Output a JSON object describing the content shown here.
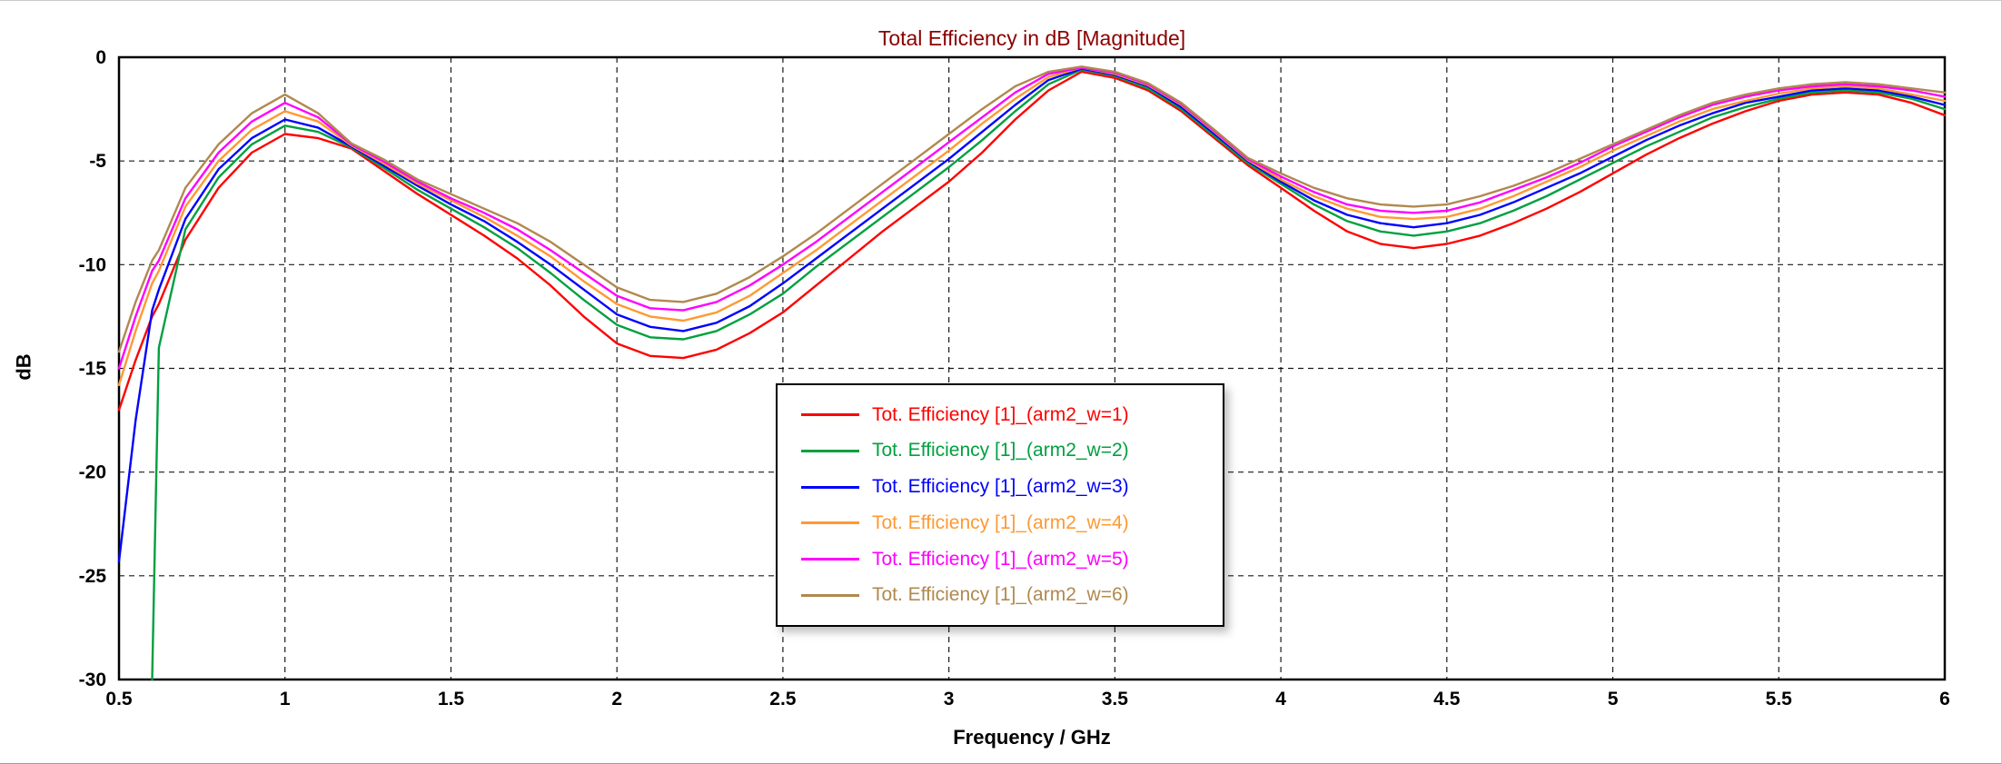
{
  "chart_data": {
    "type": "line",
    "title": "Total Efficiency in dB [Magnitude]",
    "title_color": "#8b0000",
    "xlabel": "Frequency / GHz",
    "ylabel": "dB",
    "xlim": [
      0.5,
      6
    ],
    "ylim": [
      -30,
      0
    ],
    "grid": "dashed",
    "legend_position": "center",
    "xticks": [
      0.5,
      1,
      1.5,
      2,
      2.5,
      3,
      3.5,
      4,
      4.5,
      5,
      5.5,
      6
    ],
    "xtick_labels": [
      "0.5",
      "1",
      "1.5",
      "2",
      "2.5",
      "3",
      "3.5",
      "4",
      "4.5",
      "5",
      "5.5",
      "6"
    ],
    "yticks": [
      0,
      -5,
      -10,
      -15,
      -20,
      -25,
      -30
    ],
    "ytick_labels": [
      "0",
      "-5",
      "-10",
      "-15",
      "-20",
      "-25",
      "-30"
    ],
    "x": [
      0.5,
      0.55,
      0.6,
      0.62,
      0.7,
      0.8,
      0.9,
      1,
      1.1,
      1.2,
      1.3,
      1.4,
      1.5,
      1.6,
      1.7,
      1.8,
      1.9,
      2,
      2.1,
      2.2,
      2.3,
      2.4,
      2.5,
      2.6,
      2.7,
      2.8,
      2.9,
      3,
      3.1,
      3.2,
      3.3,
      3.4,
      3.5,
      3.6,
      3.7,
      3.8,
      3.9,
      4,
      4.1,
      4.2,
      4.3,
      4.4,
      4.5,
      4.6,
      4.7,
      4.8,
      4.9,
      5,
      5.1,
      5.2,
      5.3,
      5.4,
      5.5,
      5.6,
      5.7,
      5.8,
      5.9,
      6
    ],
    "series": [
      {
        "name": "Tot. Efficiency [1]_(arm2_w=1)",
        "color": "#ff0000",
        "values": [
          -17,
          -14.6,
          -12.5,
          -11.9,
          -8.8,
          -6.3,
          -4.6,
          -3.7,
          -3.9,
          -4.4,
          -5.5,
          -6.6,
          -7.6,
          -8.6,
          -9.7,
          -11,
          -12.5,
          -13.8,
          -14.4,
          -14.5,
          -14.1,
          -13.3,
          -12.3,
          -11,
          -9.7,
          -8.4,
          -7.2,
          -6,
          -4.6,
          -3,
          -1.6,
          -0.7,
          -1,
          -1.6,
          -2.6,
          -3.9,
          -5.2,
          -6.3,
          -7.4,
          -8.4,
          -9,
          -9.2,
          -9,
          -8.6,
          -8,
          -7.3,
          -6.5,
          -5.6,
          -4.7,
          -3.9,
          -3.2,
          -2.6,
          -2.1,
          -1.8,
          -1.7,
          -1.8,
          -2.2,
          -2.8
        ]
      },
      {
        "name": "Tot. Efficiency [1]_(arm2_w=2)",
        "color": "#00a040",
        "values": [
          null,
          null,
          -30,
          -14,
          -8.3,
          -5.8,
          -4.2,
          -3.3,
          -3.6,
          -4.35,
          -5.35,
          -6.4,
          -7.3,
          -8.2,
          -9.2,
          -10.4,
          -11.7,
          -12.9,
          -13.5,
          -13.6,
          -13.2,
          -12.4,
          -11.4,
          -10.1,
          -8.9,
          -7.7,
          -6.5,
          -5.3,
          -4,
          -2.6,
          -1.3,
          -0.6,
          -0.9,
          -1.5,
          -2.5,
          -3.8,
          -5.1,
          -6.1,
          -7.1,
          -7.9,
          -8.4,
          -8.6,
          -8.4,
          -8,
          -7.4,
          -6.7,
          -5.9,
          -5.1,
          -4.3,
          -3.6,
          -2.9,
          -2.4,
          -2,
          -1.7,
          -1.6,
          -1.7,
          -2,
          -2.5
        ]
      },
      {
        "name": "Tot. Efficiency [1]_(arm2_w=3)",
        "color": "#0000ff",
        "values": [
          -24.3,
          -17.5,
          -12.2,
          -11.2,
          -7.8,
          -5.4,
          -3.9,
          -3,
          -3.4,
          -4.3,
          -5.25,
          -6.2,
          -7.1,
          -7.9,
          -8.9,
          -10,
          -11.2,
          -12.4,
          -13,
          -13.2,
          -12.8,
          -12,
          -10.9,
          -9.7,
          -8.5,
          -7.3,
          -6.1,
          -4.9,
          -3.6,
          -2.3,
          -1.1,
          -0.55,
          -0.85,
          -1.4,
          -2.4,
          -3.7,
          -5,
          -6,
          -6.9,
          -7.6,
          -8,
          -8.2,
          -8,
          -7.6,
          -7,
          -6.3,
          -5.6,
          -4.8,
          -4,
          -3.3,
          -2.7,
          -2.2,
          -1.9,
          -1.6,
          -1.5,
          -1.6,
          -1.9,
          -2.3
        ]
      },
      {
        "name": "Tot. Efficiency [1]_(arm2_w=4)",
        "color": "#ff9933",
        "values": [
          -15.8,
          -13.2,
          -10.9,
          -10.3,
          -7.2,
          -5,
          -3.5,
          -2.6,
          -3.1,
          -4.25,
          -5.15,
          -6.1,
          -6.9,
          -7.7,
          -8.6,
          -9.6,
          -10.8,
          -11.9,
          -12.5,
          -12.7,
          -12.3,
          -11.5,
          -10.4,
          -9.3,
          -8.1,
          -6.9,
          -5.7,
          -4.5,
          -3.2,
          -2,
          -0.95,
          -0.5,
          -0.8,
          -1.35,
          -2.3,
          -3.6,
          -4.95,
          -5.9,
          -6.7,
          -7.3,
          -7.7,
          -7.8,
          -7.7,
          -7.3,
          -6.7,
          -6,
          -5.3,
          -4.5,
          -3.8,
          -3.1,
          -2.5,
          -2.1,
          -1.75,
          -1.5,
          -1.4,
          -1.5,
          -1.8,
          -2.1
        ]
      },
      {
        "name": "Tot. Efficiency [1]_(arm2_w=5)",
        "color": "#ff00ff",
        "values": [
          -15,
          -12.5,
          -10.3,
          -9.8,
          -6.8,
          -4.6,
          -3.1,
          -2.2,
          -2.9,
          -4.2,
          -5.05,
          -6,
          -6.8,
          -7.5,
          -8.3,
          -9.3,
          -10.4,
          -11.5,
          -12.1,
          -12.2,
          -11.8,
          -11,
          -10,
          -8.9,
          -7.7,
          -6.5,
          -5.3,
          -4.1,
          -2.9,
          -1.7,
          -0.8,
          -0.5,
          -0.75,
          -1.3,
          -2.25,
          -3.55,
          -4.9,
          -5.75,
          -6.5,
          -7.1,
          -7.4,
          -7.5,
          -7.4,
          -7,
          -6.4,
          -5.8,
          -5.1,
          -4.3,
          -3.6,
          -2.9,
          -2.3,
          -1.9,
          -1.6,
          -1.4,
          -1.3,
          -1.4,
          -1.6,
          -1.9
        ]
      },
      {
        "name": "Tot. Efficiency [1]_(arm2_w=6)",
        "color": "#b0894f",
        "values": [
          -14.2,
          -11.8,
          -9.8,
          -9.3,
          -6.3,
          -4.2,
          -2.7,
          -1.8,
          -2.7,
          -4.15,
          -4.95,
          -5.9,
          -6.6,
          -7.3,
          -8,
          -8.9,
          -10,
          -11.1,
          -11.7,
          -11.8,
          -11.4,
          -10.6,
          -9.6,
          -8.5,
          -7.3,
          -6.1,
          -4.9,
          -3.7,
          -2.5,
          -1.4,
          -0.7,
          -0.45,
          -0.7,
          -1.25,
          -2.2,
          -3.5,
          -4.85,
          -5.6,
          -6.3,
          -6.8,
          -7.1,
          -7.2,
          -7.1,
          -6.7,
          -6.2,
          -5.6,
          -4.9,
          -4.2,
          -3.5,
          -2.8,
          -2.2,
          -1.8,
          -1.5,
          -1.3,
          -1.2,
          -1.3,
          -1.5,
          -1.7
        ]
      }
    ]
  }
}
